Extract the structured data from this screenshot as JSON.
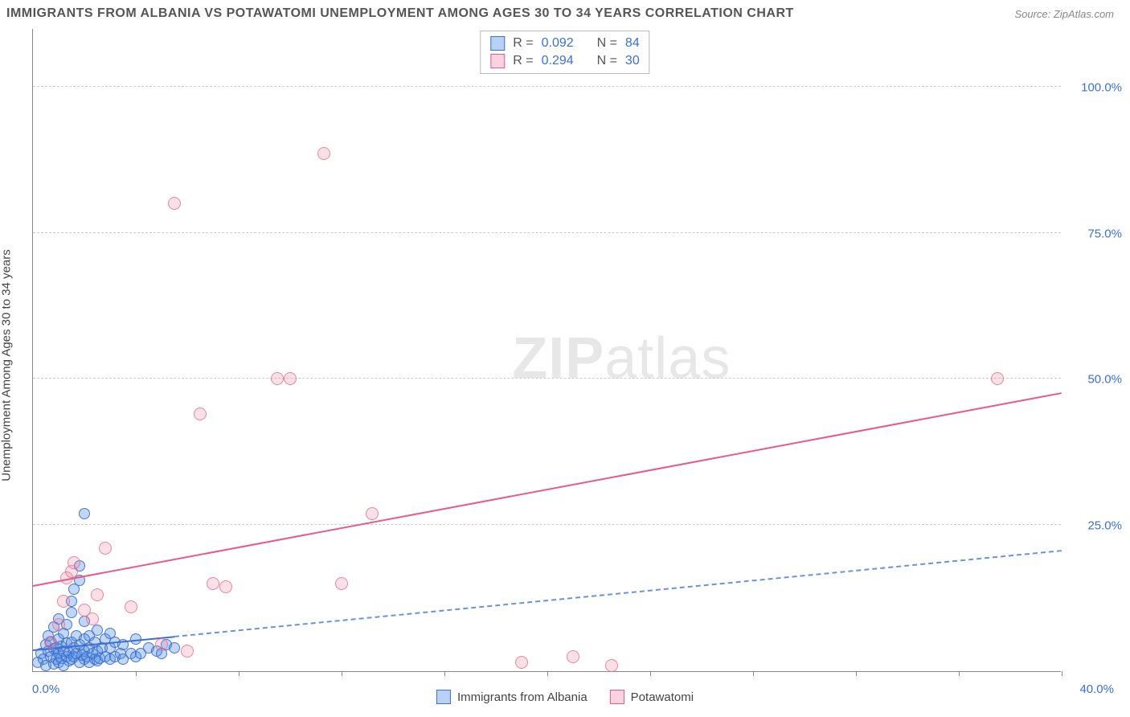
{
  "title": "IMMIGRANTS FROM ALBANIA VS POTAWATOMI UNEMPLOYMENT AMONG AGES 30 TO 34 YEARS CORRELATION CHART",
  "source": "Source: ZipAtlas.com",
  "y_axis_label": "Unemployment Among Ages 30 to 34 years",
  "watermark_bold": "ZIP",
  "watermark_rest": "atlas",
  "chart": {
    "type": "scatter",
    "xlim": [
      0,
      40
    ],
    "ylim": [
      0,
      110
    ],
    "y_ticks": [
      25,
      50,
      75,
      100
    ],
    "y_tick_labels": [
      "25.0%",
      "50.0%",
      "75.0%",
      "100.0%"
    ],
    "x_origin_label": "0.0%",
    "x_max_label": "40.0%",
    "x_tick_positions": [
      4,
      8,
      12,
      16,
      20,
      24,
      28,
      32,
      36,
      40
    ],
    "grid_color": "#cccccc",
    "background_color": "#ffffff",
    "series": [
      {
        "key": "albania",
        "label": "Immigrants from Albania",
        "color_fill": "rgba(80,140,230,0.35)",
        "color_stroke": "#3b6fd6",
        "marker_size": 14,
        "r_label": "R =",
        "r_value": "0.092",
        "n_label": "N =",
        "n_value": "84",
        "trend_solid": {
          "x1": 0,
          "y1": 3.5,
          "x2": 5.5,
          "y2": 5.8
        },
        "trend_dash": {
          "x1": 5.5,
          "y1": 5.8,
          "x2": 40,
          "y2": 20.5
        },
        "points": [
          [
            0.2,
            1.5
          ],
          [
            0.3,
            3.0
          ],
          [
            0.4,
            2.0
          ],
          [
            0.5,
            4.5
          ],
          [
            0.5,
            1.0
          ],
          [
            0.6,
            3.5
          ],
          [
            0.6,
            6.0
          ],
          [
            0.7,
            2.5
          ],
          [
            0.7,
            5.0
          ],
          [
            0.8,
            1.2
          ],
          [
            0.8,
            3.8
          ],
          [
            0.8,
            7.5
          ],
          [
            0.9,
            2.0
          ],
          [
            0.9,
            4.0
          ],
          [
            1.0,
            1.5
          ],
          [
            1.0,
            3.0
          ],
          [
            1.0,
            5.5
          ],
          [
            1.0,
            9.0
          ],
          [
            1.1,
            2.2
          ],
          [
            1.1,
            4.2
          ],
          [
            1.2,
            1.0
          ],
          [
            1.2,
            3.5
          ],
          [
            1.2,
            6.5
          ],
          [
            1.3,
            2.5
          ],
          [
            1.3,
            4.8
          ],
          [
            1.3,
            8.0
          ],
          [
            1.4,
            1.8
          ],
          [
            1.4,
            3.2
          ],
          [
            1.5,
            2.0
          ],
          [
            1.5,
            5.0
          ],
          [
            1.5,
            10.0
          ],
          [
            1.5,
            12.0
          ],
          [
            1.6,
            2.5
          ],
          [
            1.6,
            4.0
          ],
          [
            1.6,
            14.0
          ],
          [
            1.7,
            3.0
          ],
          [
            1.7,
            6.0
          ],
          [
            1.8,
            1.5
          ],
          [
            1.8,
            4.5
          ],
          [
            1.8,
            15.5
          ],
          [
            1.8,
            18.0
          ],
          [
            1.9,
            2.8
          ],
          [
            2.0,
            2.0
          ],
          [
            2.0,
            3.5
          ],
          [
            2.0,
            5.5
          ],
          [
            2.0,
            8.5
          ],
          [
            2.0,
            27.0
          ],
          [
            2.1,
            2.5
          ],
          [
            2.2,
            1.5
          ],
          [
            2.2,
            4.0
          ],
          [
            2.2,
            6.0
          ],
          [
            2.3,
            3.0
          ],
          [
            2.4,
            2.0
          ],
          [
            2.4,
            5.0
          ],
          [
            2.5,
            1.8
          ],
          [
            2.5,
            3.5
          ],
          [
            2.5,
            7.0
          ],
          [
            2.6,
            2.2
          ],
          [
            2.7,
            4.0
          ],
          [
            2.8,
            2.5
          ],
          [
            2.8,
            5.5
          ],
          [
            3.0,
            2.0
          ],
          [
            3.0,
            4.0
          ],
          [
            3.0,
            6.5
          ],
          [
            3.2,
            2.5
          ],
          [
            3.2,
            5.0
          ],
          [
            3.4,
            3.0
          ],
          [
            3.5,
            2.0
          ],
          [
            3.5,
            4.5
          ],
          [
            3.8,
            3.0
          ],
          [
            4.0,
            2.5
          ],
          [
            4.0,
            5.5
          ],
          [
            4.2,
            3.0
          ],
          [
            4.5,
            4.0
          ],
          [
            4.8,
            3.5
          ],
          [
            5.0,
            3.0
          ],
          [
            5.2,
            4.5
          ],
          [
            5.5,
            4.0
          ]
        ]
      },
      {
        "key": "potawatomi",
        "label": "Potawatomi",
        "color_fill": "rgba(240,130,160,0.25)",
        "color_stroke": "#e85b88",
        "marker_size": 16,
        "r_label": "R =",
        "r_value": "0.294",
        "n_label": "N =",
        "n_value": "30",
        "trend_solid": {
          "x1": 0,
          "y1": 14.5,
          "x2": 40,
          "y2": 47.5
        },
        "points": [
          [
            0.7,
            5.0
          ],
          [
            1.0,
            8.0
          ],
          [
            1.2,
            12.0
          ],
          [
            1.3,
            16.0
          ],
          [
            1.5,
            17.0
          ],
          [
            1.6,
            18.5
          ],
          [
            2.0,
            10.5
          ],
          [
            2.3,
            9.0
          ],
          [
            2.5,
            13.0
          ],
          [
            2.8,
            21.0
          ],
          [
            3.8,
            11.0
          ],
          [
            5.0,
            4.5
          ],
          [
            5.5,
            80.0
          ],
          [
            6.0,
            3.5
          ],
          [
            6.5,
            44.0
          ],
          [
            7.0,
            15.0
          ],
          [
            7.5,
            14.5
          ],
          [
            9.5,
            50.0
          ],
          [
            10.0,
            50.0
          ],
          [
            11.3,
            88.5
          ],
          [
            12.0,
            15.0
          ],
          [
            13.2,
            27.0
          ],
          [
            19.0,
            1.5
          ],
          [
            21.0,
            2.5
          ],
          [
            22.5,
            1.0
          ],
          [
            37.5,
            50.0
          ]
        ]
      }
    ]
  },
  "legend_bottom": [
    {
      "key": "albania",
      "label": "Immigrants from Albania",
      "swatch": "blue"
    },
    {
      "key": "potawatomi",
      "label": "Potawatomi",
      "swatch": "pink"
    }
  ]
}
